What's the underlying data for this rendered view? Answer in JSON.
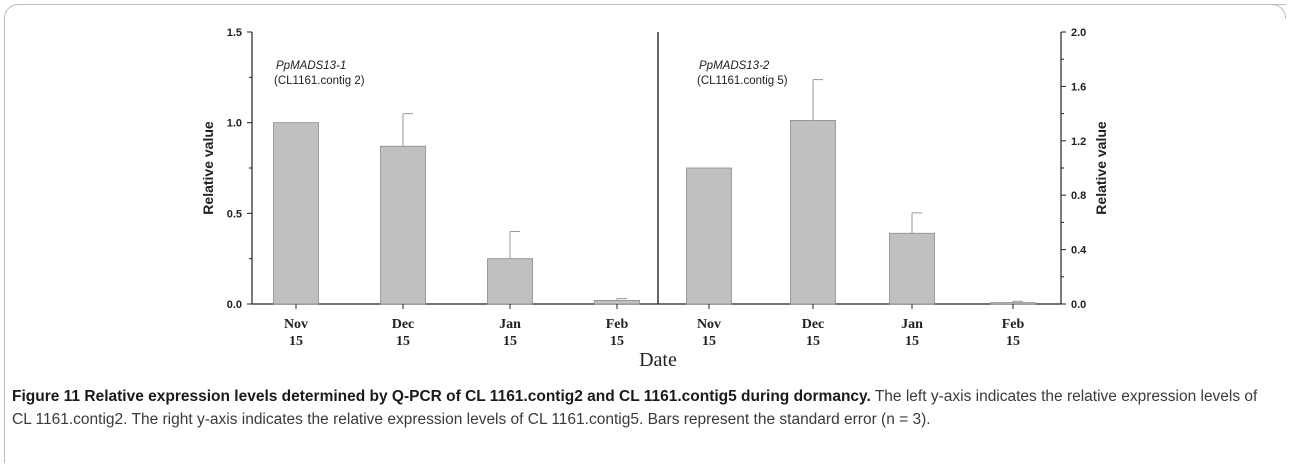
{
  "chart_data": [
    {
      "type": "bar",
      "annotation_gene": "PpMADS13-1",
      "annotation_contig": "(CL1161.contig 2)",
      "categories_line1": [
        "Nov",
        "Dec",
        "Jan",
        "Feb"
      ],
      "categories_line2": [
        "15",
        "15",
        "15",
        "15"
      ],
      "values": [
        1.0,
        0.87,
        0.25,
        0.02
      ],
      "errors": [
        0.0,
        0.18,
        0.15,
        0.01
      ],
      "ylim": [
        0,
        1.5
      ],
      "yticks": [
        "0.0",
        "0.5",
        "1.0",
        "1.5"
      ],
      "ylabel": "Relative value",
      "y_axis_side": "left"
    },
    {
      "type": "bar",
      "annotation_gene": "PpMADS13-2",
      "annotation_contig": "(CL1161.contig 5)",
      "categories_line1": [
        "Nov",
        "Dec",
        "Jan",
        "Feb"
      ],
      "categories_line2": [
        "15",
        "15",
        "15",
        "15"
      ],
      "values": [
        1.0,
        1.35,
        0.52,
        0.01
      ],
      "errors": [
        0.0,
        0.3,
        0.15,
        0.01
      ],
      "ylim": [
        0,
        2.0
      ],
      "yticks": [
        "0.0",
        "0.4",
        "0.8",
        "1.2",
        "1.6",
        "2.0"
      ],
      "ylabel": "Relative value",
      "y_axis_side": "right"
    }
  ],
  "xlabel": "Date",
  "bar_color": "#c0c0c0",
  "caption": {
    "figure_number": "Figure 11",
    "title": "Relative expression levels determined by Q-PCR of CL 1161.contig2 and CL 1161.contig5 during dormancy.",
    "body": "The left y-axis indicates the relative expression levels of CL 1161.contig2. The right y-axis indicates the relative expression levels of CL 1161.contig5. Bars represent the standard error (n = 3)."
  }
}
